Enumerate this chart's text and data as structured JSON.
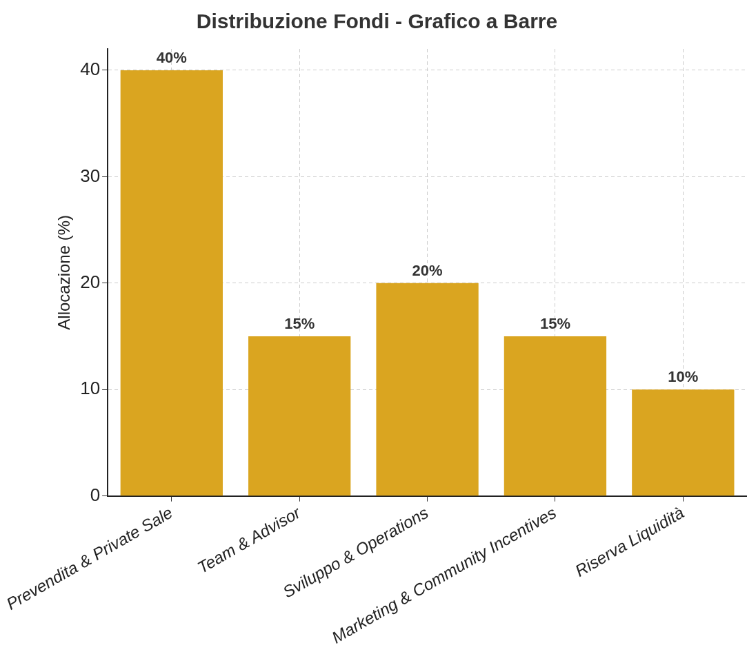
{
  "chart_data": {
    "type": "bar",
    "title": "Distribuzione Fondi - Grafico a Barre",
    "ylabel": "Allocazione (%)",
    "categories": [
      "Prevendita & Private Sale",
      "Team & Advisor",
      "Sviluppo & Operations",
      "Marketing & Community Incentives",
      "Riserva Liquidità"
    ],
    "values": [
      40,
      15,
      20,
      15,
      10
    ],
    "value_labels": [
      "40%",
      "15%",
      "20%",
      "15%",
      "10%"
    ],
    "color": "#daa520",
    "ylim": [
      0,
      42
    ],
    "yticks": [
      0,
      10,
      20,
      30,
      40
    ],
    "grid": true,
    "legend": false
  }
}
